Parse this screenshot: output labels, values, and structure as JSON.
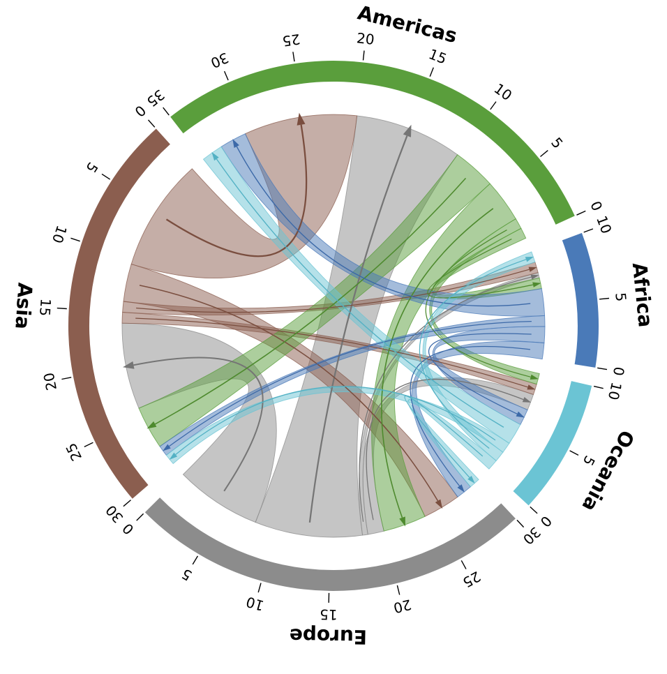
{
  "figure": {
    "background": "#ffffff",
    "description": "Directed chord diagram of flows between world regions"
  },
  "chart_data": {
    "type": "chord",
    "title": "",
    "legend": "none",
    "sectors": [
      {
        "name": "Americas",
        "total": 35,
        "color": "#5a9e3c",
        "arrow_color": "#4e8a2e",
        "ticks": [
          0,
          5,
          10,
          15,
          20,
          25,
          30,
          35
        ]
      },
      {
        "name": "Asia",
        "total": 30,
        "color": "#8b5e4f",
        "arrow_color": "#7a4e3f",
        "ticks": [
          0,
          5,
          10,
          15,
          20,
          25,
          30
        ]
      },
      {
        "name": "Europe",
        "total": 30,
        "color": "#8c8c8c",
        "arrow_color": "#757575",
        "ticks": [
          0,
          5,
          10,
          15,
          20,
          25,
          30
        ]
      },
      {
        "name": "Oceania",
        "total": 10,
        "color": "#6bc4d4",
        "arrow_color": "#53b1c4",
        "ticks": [
          0,
          5,
          10
        ]
      },
      {
        "name": "Africa",
        "total": 10,
        "color": "#4a7ab8",
        "arrow_color": "#3c69a8",
        "ticks": [
          0,
          5,
          10
        ]
      }
    ],
    "layout": {
      "start_angle_deg": 24.5,
      "gap_deg": 4,
      "direction": "counterclockwise",
      "sector_order": [
        "Americas",
        "Asia",
        "Europe",
        "Oceania",
        "Africa"
      ]
    },
    "flows": [
      {
        "from": "Europe",
        "to": "Americas",
        "value": 10,
        "src": [
          8,
          18
        ],
        "tgt": [
          10,
          20
        ]
      },
      {
        "from": "Europe",
        "to": "Asia",
        "value": 8,
        "src": [
          0,
          8
        ],
        "tgt": [
          16,
          24
        ]
      },
      {
        "from": "Europe",
        "to": "Africa",
        "value": 0.5,
        "src": [
          18,
          18.5
        ],
        "tgt": [
          7.5,
          8
        ]
      },
      {
        "from": "Europe",
        "to": "Oceania",
        "value": 1.5,
        "src": [
          18.5,
          20
        ],
        "tgt": [
          6.5,
          8
        ]
      },
      {
        "from": "Asia",
        "to": "Americas",
        "value": 10.5,
        "src": [
          0,
          10.5
        ],
        "tgt": [
          20,
          30.5
        ]
      },
      {
        "from": "Asia",
        "to": "Europe",
        "value": 3.5,
        "src": [
          10.5,
          14
        ],
        "tgt": [
          24,
          27.5
        ]
      },
      {
        "from": "Asia",
        "to": "Africa",
        "value": 1,
        "src": [
          14,
          15
        ],
        "tgt": [
          8,
          9
        ]
      },
      {
        "from": "Asia",
        "to": "Oceania",
        "value": 1,
        "src": [
          15,
          16
        ],
        "tgt": [
          8,
          9
        ]
      },
      {
        "from": "Americas",
        "to": "Europe",
        "value": 4,
        "src": [
          2,
          6
        ],
        "tgt": [
          20,
          24
        ]
      },
      {
        "from": "Americas",
        "to": "Asia",
        "value": 4,
        "src": [
          6,
          10
        ],
        "tgt": [
          24,
          28
        ]
      },
      {
        "from": "Americas",
        "to": "Africa",
        "value": 1,
        "src": [
          0,
          1
        ],
        "tgt": [
          6.5,
          7.5
        ]
      },
      {
        "from": "Americas",
        "to": "Oceania",
        "value": 1,
        "src": [
          1,
          2
        ],
        "tgt": [
          9,
          10
        ]
      },
      {
        "from": "Africa",
        "to": "Americas",
        "value": 2.5,
        "src": [
          4,
          6.5
        ],
        "tgt": [
          30.5,
          33
        ]
      },
      {
        "from": "Africa",
        "to": "Asia",
        "value": 1,
        "src": [
          3,
          4
        ],
        "tgt": [
          28,
          29
        ]
      },
      {
        "from": "Africa",
        "to": "Europe",
        "value": 1.5,
        "src": [
          0,
          1.5
        ],
        "tgt": [
          27.5,
          29
        ]
      },
      {
        "from": "Africa",
        "to": "Oceania",
        "value": 1.5,
        "src": [
          1.5,
          3
        ],
        "tgt": [
          5,
          6.5
        ]
      },
      {
        "from": "Oceania",
        "to": "Americas",
        "value": 2,
        "src": [
          3,
          5
        ],
        "tgt": [
          33,
          35
        ]
      },
      {
        "from": "Oceania",
        "to": "Asia",
        "value": 1,
        "src": [
          2,
          3
        ],
        "tgt": [
          29,
          30
        ]
      },
      {
        "from": "Oceania",
        "to": "Europe",
        "value": 1,
        "src": [
          0,
          1
        ],
        "tgt": [
          29,
          30
        ]
      },
      {
        "from": "Oceania",
        "to": "Africa",
        "value": 1,
        "src": [
          1,
          2
        ],
        "tgt": [
          9,
          10
        ]
      }
    ],
    "style": {
      "ribbon_opacity": 0.5,
      "ribbon_edge_opacity": 0.78,
      "band_thickness_px": 30,
      "tick_color": "#000000",
      "label_color": "#000000"
    }
  }
}
